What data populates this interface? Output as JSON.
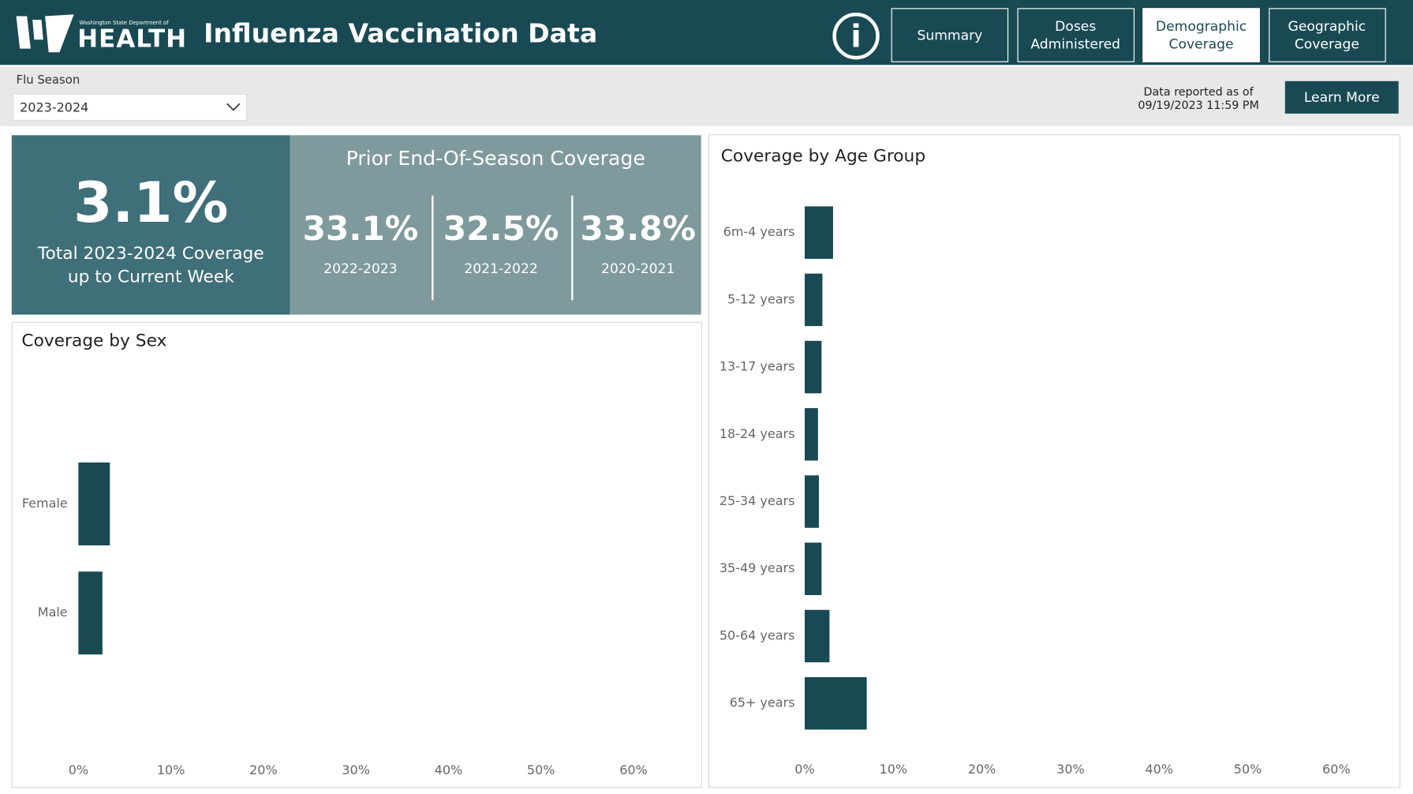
{
  "header": {
    "logo_small": "Washington State Department of",
    "logo": "HEALTH",
    "title": "Influenza Vaccination Data",
    "info": "i",
    "nav": [
      "Summary",
      "Doses Administered",
      "Demographic Coverage",
      "Geographic Coverage"
    ],
    "active": 2
  },
  "filters": {
    "label": "Flu Season",
    "selected": "2023-2024",
    "reported_label": "Data reported as of",
    "reported_date": "09/19/2023 11:59 PM",
    "button": "Learn More"
  },
  "kpi": {
    "value": "3.1%",
    "caption": "Total 2023-2024 Coverage up to Current Week"
  },
  "prior": {
    "title": "Prior End-Of-Season Coverage",
    "items": [
      {
        "value": "33.1%",
        "season": "2022-2023"
      },
      {
        "value": "32.5%",
        "season": "2021-2022"
      },
      {
        "value": "33.8%",
        "season": "2020-2021"
      }
    ]
  },
  "chart_data": [
    {
      "type": "bar",
      "orientation": "horizontal",
      "title": "Coverage by Sex",
      "categories": [
        "Female",
        "Male"
      ],
      "values": [
        3.4,
        2.6
      ],
      "color": "#194a54",
      "xlim": [
        0,
        60
      ],
      "xticks": [
        {
          "value": 0,
          "label": "0%"
        },
        {
          "value": 10,
          "label": "10%"
        },
        {
          "value": 20,
          "label": "20%"
        },
        {
          "value": 30,
          "label": "30%"
        },
        {
          "value": 40,
          "label": "40%"
        },
        {
          "value": 50,
          "label": "50%"
        },
        {
          "value": 60,
          "label": "60%"
        }
      ]
    },
    {
      "type": "bar",
      "orientation": "horizontal",
      "title": "Coverage by Age Group",
      "categories": [
        "6m-4 years",
        "5-12 years",
        "13-17 years",
        "18-24 years",
        "25-34 years",
        "35-49 years",
        "50-64 years",
        "65+ years"
      ],
      "values": [
        3.2,
        2.0,
        1.9,
        1.5,
        1.6,
        1.9,
        2.8,
        7.0
      ],
      "color": "#194a54",
      "xlim": [
        0,
        60
      ],
      "xticks": [
        {
          "value": 0,
          "label": "0%"
        },
        {
          "value": 10,
          "label": "10%"
        },
        {
          "value": 20,
          "label": "20%"
        },
        {
          "value": 30,
          "label": "30%"
        },
        {
          "value": 40,
          "label": "40%"
        },
        {
          "value": 50,
          "label": "50%"
        },
        {
          "value": 60,
          "label": "60%"
        }
      ]
    }
  ]
}
